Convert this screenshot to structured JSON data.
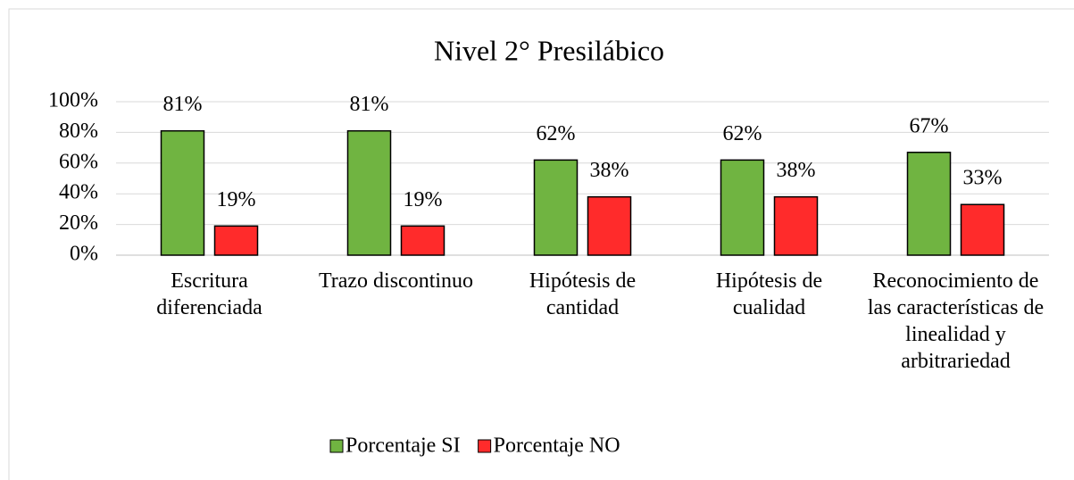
{
  "chart_data": {
    "type": "bar",
    "title": "Nivel 2° Presilábico",
    "categories": [
      "Escritura diferenciada",
      "Trazo discontinuo",
      "Hipótesis de cantidad",
      "Hipótesis de cualidad",
      "Reconocimiento de las características de linealidad y arbitrariedad"
    ],
    "series": [
      {
        "name": "Porcentaje SI",
        "color": "#70b441",
        "values": [
          81,
          81,
          62,
          62,
          67
        ],
        "value_labels": [
          "81%",
          "81%",
          "62%",
          "62%",
          "67%"
        ]
      },
      {
        "name": "Porcentaje NO",
        "color": "#ff2b2b",
        "values": [
          19,
          19,
          38,
          38,
          33
        ],
        "value_labels": [
          "19%",
          "19%",
          "38%",
          "38%",
          "33%"
        ]
      }
    ],
    "ylim": [
      0,
      100
    ],
    "yticks": [
      {
        "value": 0,
        "label": "0%"
      },
      {
        "value": 20,
        "label": "20%"
      },
      {
        "value": 40,
        "label": "40%"
      },
      {
        "value": 60,
        "label": "60%"
      },
      {
        "value": 80,
        "label": "80%"
      },
      {
        "value": 100,
        "label": "100%"
      }
    ],
    "grid": true,
    "legend": "bottom"
  }
}
